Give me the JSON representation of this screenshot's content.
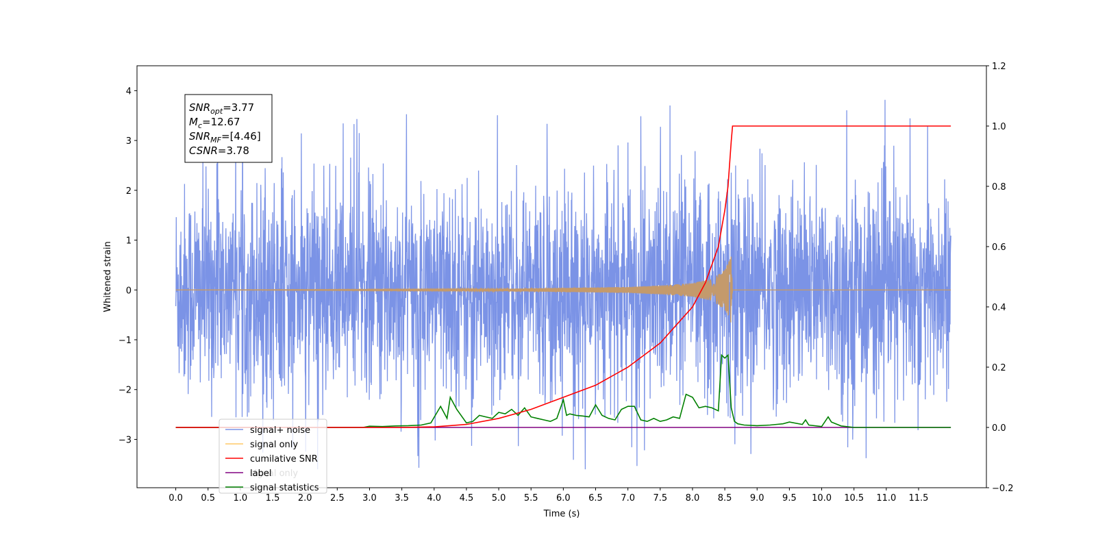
{
  "chart_data": {
    "type": "line",
    "xlabel": "Time (s)",
    "ylabel": "Whitened strain",
    "xlim": [
      -0.6,
      12.55
    ],
    "ylim": [
      -3.97,
      4.5
    ],
    "y2lim": [
      -0.2,
      1.2
    ],
    "x_ticks": [
      0.0,
      0.5,
      1.0,
      1.5,
      2.0,
      2.5,
      3.0,
      3.5,
      4.0,
      4.5,
      5.0,
      5.5,
      6.0,
      6.5,
      7.0,
      7.5,
      8.0,
      8.5,
      9.0,
      9.5,
      10.0,
      10.5,
      11.0,
      11.5
    ],
    "x_tick_labels": [
      "0.0",
      "0.5",
      "1.0",
      "1.5",
      "2.0",
      "2.5",
      "3.0",
      "3.5",
      "4.0",
      "4.5",
      "5.0",
      "5.5",
      "6.0",
      "6.5",
      "7.0",
      "7.5",
      "8.0",
      "8.5",
      "9.0",
      "9.5",
      "10.0",
      "10.5",
      "11.0",
      "11.5"
    ],
    "y_ticks": [
      -3,
      -2,
      -1,
      0,
      1,
      2,
      3,
      4
    ],
    "y_tick_labels": [
      "−3",
      "−2",
      "−1",
      "0",
      "1",
      "2",
      "3",
      "4"
    ],
    "y2_ticks": [
      -0.2,
      0.0,
      0.2,
      0.4,
      0.6,
      0.8,
      1.0,
      1.2
    ],
    "y2_tick_labels": [
      "−0.2",
      "0.0",
      "0.2",
      "0.4",
      "0.6",
      "0.8",
      "1.0",
      "1.2"
    ],
    "grid": false,
    "legend_position": "lower-left",
    "stats": [
      {
        "name": "SNR",
        "sub": "opt",
        "value": "=3.77"
      },
      {
        "name": "M",
        "sub": "c",
        "value": "=12.67"
      },
      {
        "name": "SNR",
        "sub": "MF",
        "value": "=[4.46]"
      },
      {
        "name": "CSNR",
        "sub": "",
        "value": "=3.78"
      }
    ],
    "legend": [
      {
        "label": "signal+ noise",
        "color": "#7b93e6"
      },
      {
        "label": "signal only",
        "color": "#ffc966"
      },
      {
        "label": "cumilative SNR",
        "color": "#ff0000"
      },
      {
        "label": "label",
        "color": "#800080"
      },
      {
        "label": "signal statistics",
        "color": "#008000"
      }
    ],
    "hidden_legend_label": "signal only",
    "series": [
      {
        "name": "signal+ noise",
        "axis": "left",
        "color": "#7b93e6",
        "x_range": [
          0.0,
          12.0
        ],
        "y_center": 0.0,
        "y_typical_range": [
          -2.5,
          2.5
        ],
        "y_extremes_max": [
          2.65,
          3.87,
          4.1,
          4.05,
          3.3
        ],
        "y_extremes_min": [
          -3.0,
          -3.55,
          -3.4,
          -3.35,
          -3.25
        ]
      },
      {
        "name": "signal only",
        "axis": "left",
        "color": "#c49a6c",
        "x": [
          0.0,
          5.0,
          6.0,
          7.0,
          7.5,
          8.0,
          8.3,
          8.5,
          8.6,
          8.62,
          12.0
        ],
        "amplitude": [
          0.0,
          0.02,
          0.04,
          0.06,
          0.09,
          0.14,
          0.22,
          0.4,
          0.68,
          0.0,
          0.0
        ]
      },
      {
        "name": "cumilative SNR",
        "axis": "right",
        "color": "#ff0000",
        "x": [
          0.0,
          3.5,
          4.0,
          4.5,
          5.0,
          5.5,
          6.0,
          6.5,
          7.0,
          7.5,
          8.0,
          8.2,
          8.4,
          8.5,
          8.55,
          8.6,
          8.62,
          12.0
        ],
        "values": [
          0.0,
          0.0,
          0.002,
          0.01,
          0.03,
          0.06,
          0.1,
          0.14,
          0.2,
          0.28,
          0.4,
          0.48,
          0.6,
          0.72,
          0.8,
          0.95,
          1.0,
          1.0
        ]
      },
      {
        "name": "label",
        "axis": "right",
        "color": "#800080",
        "x": [
          0.0,
          12.0
        ],
        "values": [
          0.0,
          0.0
        ]
      },
      {
        "name": "signal statistics",
        "axis": "right",
        "color": "#008000",
        "x": [
          0.0,
          2.9,
          3.0,
          3.2,
          3.4,
          3.6,
          3.8,
          3.95,
          4.1,
          4.2,
          4.25,
          4.35,
          4.5,
          4.6,
          4.7,
          4.8,
          4.9,
          5.0,
          5.1,
          5.2,
          5.3,
          5.4,
          5.5,
          5.6,
          5.7,
          5.8,
          5.9,
          6.0,
          6.05,
          6.1,
          6.2,
          6.3,
          6.4,
          6.5,
          6.6,
          6.7,
          6.8,
          6.9,
          7.0,
          7.1,
          7.2,
          7.3,
          7.4,
          7.5,
          7.6,
          7.7,
          7.8,
          7.9,
          8.0,
          8.1,
          8.2,
          8.3,
          8.4,
          8.45,
          8.5,
          8.55,
          8.6,
          8.65,
          8.7,
          8.8,
          9.0,
          9.2,
          9.4,
          9.5,
          9.7,
          9.75,
          9.8,
          10.0,
          10.1,
          10.15,
          10.3,
          10.5,
          12.0
        ],
        "values": [
          0.0,
          0.0,
          0.004,
          0.003,
          0.005,
          0.006,
          0.008,
          0.015,
          0.07,
          0.03,
          0.1,
          0.06,
          0.015,
          0.02,
          0.04,
          0.035,
          0.03,
          0.05,
          0.045,
          0.06,
          0.04,
          0.065,
          0.035,
          0.03,
          0.025,
          0.02,
          0.03,
          0.092,
          0.04,
          0.045,
          0.04,
          0.038,
          0.035,
          0.075,
          0.04,
          0.03,
          0.025,
          0.06,
          0.07,
          0.07,
          0.025,
          0.02,
          0.03,
          0.02,
          0.025,
          0.035,
          0.03,
          0.11,
          0.1,
          0.065,
          0.07,
          0.065,
          0.055,
          0.24,
          0.23,
          0.24,
          0.065,
          0.02,
          0.012,
          0.008,
          0.006,
          0.008,
          0.012,
          0.018,
          0.01,
          0.025,
          0.008,
          0.003,
          0.035,
          0.018,
          0.005,
          0.0,
          0.0
        ]
      }
    ]
  }
}
